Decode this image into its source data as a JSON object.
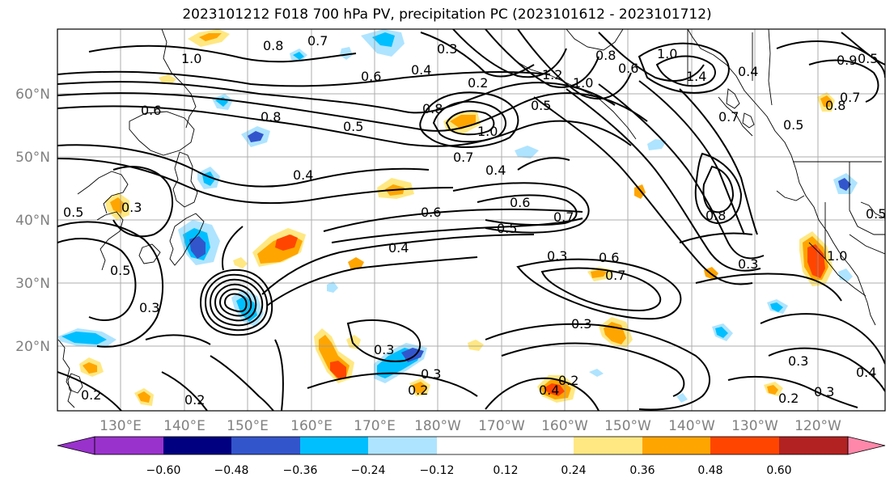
{
  "title": "2023101212 F018 700 hPa PV, precipitation PC (2023101612 - 2023101712)",
  "lat_labels": [
    "60°N",
    "50°N",
    "40°N",
    "30°N",
    "20°N"
  ],
  "lon_labels": [
    "130°E",
    "140°E",
    "150°E",
    "160°E",
    "170°E",
    "180°W",
    "170°W",
    "160°W",
    "150°W",
    "140°W",
    "130°W",
    "120°W"
  ],
  "colorbar": {
    "colors": [
      "#9932cc",
      "#000080",
      "#3355cc",
      "#00bfff",
      "#aee4ff",
      "#ffffff",
      "#ffffff",
      "#ffe882",
      "#ffa500",
      "#ff4500",
      "#b22222",
      "#ff88aa"
    ],
    "ticks": [
      "−0.60",
      "−0.48",
      "−0.36",
      "−0.24",
      "−0.12",
      "0.12",
      "0.24",
      "0.36",
      "0.48",
      "0.60"
    ]
  },
  "contour_labels": [
    "1.0",
    "0.8",
    "0.7",
    "0.6",
    "0.3",
    "0.2",
    "0.4",
    "1.2",
    "1.0",
    "0.8",
    "0.6",
    "1.0",
    "1.4",
    "0.4",
    "0.9",
    "0.5",
    "0.6",
    "0.8",
    "0.5",
    "0.5",
    "0.8",
    "1.0",
    "0.7",
    "0.4",
    "0.4",
    "0.6",
    "0.6",
    "0.7",
    "0.5",
    "0.4",
    "0.3",
    "0.6",
    "0.7",
    "0.8",
    "0.3",
    "0.3",
    "0.5",
    "0.3",
    "0.2",
    "0.3",
    "0.3",
    "0.2",
    "0.3",
    "0.2",
    "0.4",
    "0.2",
    "0.3",
    "0.4",
    "0.5",
    "0.5",
    "0.7",
    "0.8",
    "1.0",
    "0.7",
    "0.5",
    "0.2",
    "0.3"
  ]
}
